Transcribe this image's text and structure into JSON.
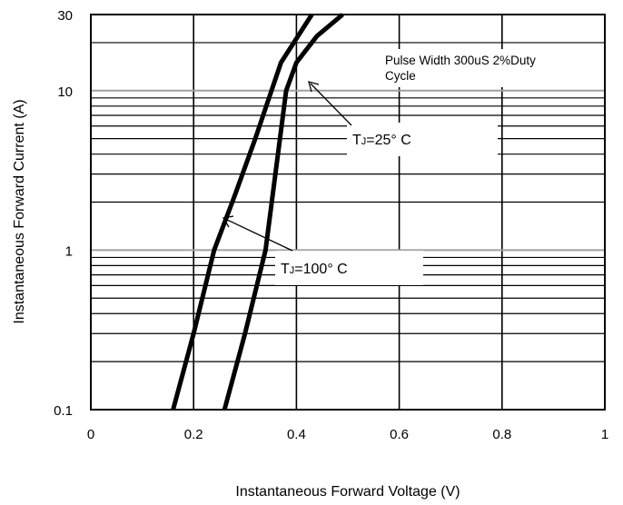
{
  "chart_data": {
    "type": "line",
    "title": "",
    "xlabel": "Instantaneous Forward Voltage (V)",
    "ylabel": "Instantaneous Forward Current (A)",
    "x_scale": "linear",
    "y_scale": "log",
    "xlim": [
      0,
      1
    ],
    "ylim": [
      0.1,
      30
    ],
    "x_ticks": [
      "0",
      "0.2",
      "0.4",
      "0.6",
      "0.8",
      "1"
    ],
    "y_ticks": [
      {
        "value": 0.1,
        "label": "0.1"
      },
      {
        "value": 1,
        "label": "1"
      },
      {
        "value": 10,
        "label": "10"
      },
      {
        "value": 30,
        "label": "30"
      }
    ],
    "grid": true,
    "series": [
      {
        "name": "TJ=25° C",
        "x": [
          0.26,
          0.3,
          0.34,
          0.38,
          0.4,
          0.44,
          0.49
        ],
        "y": [
          0.1,
          0.3,
          1.0,
          10.0,
          15.0,
          22.0,
          30.0
        ]
      },
      {
        "name": "TJ=100° C",
        "x": [
          0.16,
          0.2,
          0.24,
          0.28,
          0.32,
          0.37,
          0.43
        ],
        "y": [
          0.1,
          0.3,
          1.0,
          2.2,
          5.0,
          15.0,
          30.0
        ]
      }
    ],
    "annotations": {
      "note": [
        "Pulse Width 300uS 2%Duty",
        "Cycle"
      ],
      "tj25": {
        "prefix": "T",
        "sub": "J",
        "rest": "=25° C"
      },
      "tj100": {
        "prefix": "T",
        "sub": "J",
        "rest": "=100° C"
      }
    }
  }
}
